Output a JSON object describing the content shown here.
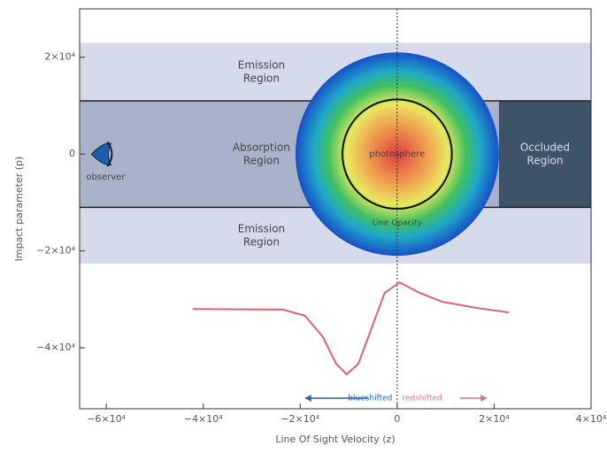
{
  "chart_data": {
    "type": "line",
    "x_label": "Line Of Sight Velocity (z)",
    "y_label": "Impact parameter (p)",
    "xlim": [
      -65500,
      40000
    ],
    "ylim": [
      -52600,
      30000
    ],
    "xticks": [
      {
        "value": -60000,
        "label": "−6×10⁴"
      },
      {
        "value": -40000,
        "label": "−4×10⁴"
      },
      {
        "value": -20000,
        "label": "−2×10⁴"
      },
      0,
      {
        "value": 20000,
        "label": "2×10⁴"
      },
      {
        "value": 40000,
        "label": "4×10⁴"
      }
    ],
    "yticks": [
      {
        "value": 20000,
        "label": "2×10⁴"
      },
      0,
      {
        "value": -20000,
        "label": "−2×10⁴"
      },
      {
        "value": -40000,
        "label": "−4×10⁴"
      }
    ],
    "regions": [
      {
        "label": "Emission Region",
        "p_range": [
          11000,
          23000
        ]
      },
      {
        "label": "Absorption Region",
        "p_range": [
          -11000,
          11000
        ]
      },
      {
        "label": "Emission Region",
        "p_range": [
          -22600,
          -11000
        ]
      }
    ],
    "occluded": {
      "label": "Occluded Region"
    },
    "envelope": {
      "label": "Line Opacity",
      "radius": 21000
    },
    "photosphere": {
      "label": "photosphere",
      "radius": 11300
    },
    "observer": {
      "label": "observer"
    },
    "shift_labels": {
      "blue": "blueshifted",
      "red": "redshifted"
    },
    "series": [
      {
        "color": "#e0607a",
        "x": [
          -42200,
          -23600,
          -19000,
          -15300,
          -12600,
          -10400,
          -8000,
          -5300,
          -2600,
          500,
          4700,
          9300,
          16600,
          23000
        ],
        "values": [
          -32000,
          -32100,
          -33400,
          -37800,
          -43300,
          -45500,
          -43300,
          -36000,
          -28700,
          -26500,
          -28700,
          -30500,
          -31800,
          -32700
        ]
      }
    ]
  }
}
